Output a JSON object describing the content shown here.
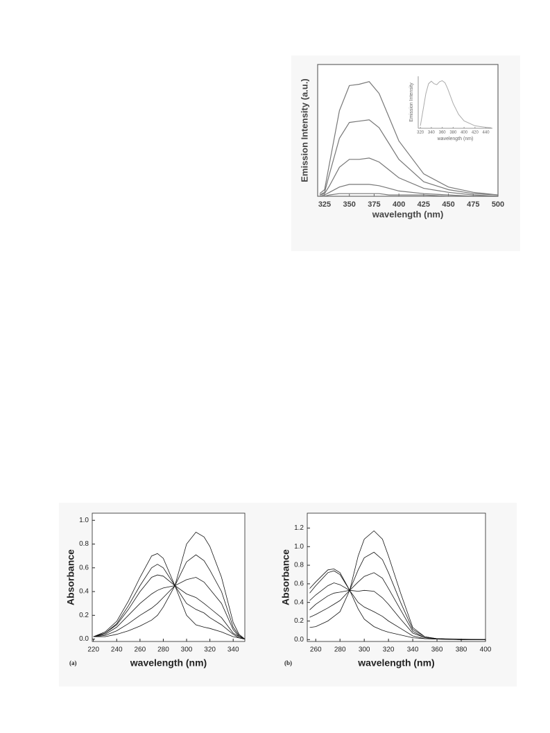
{
  "chart_data": [
    {
      "type": "line",
      "xlabel": "wavelength (nm)",
      "ylabel": "Emission Intensity (a.u.)",
      "x": [
        320,
        325,
        330,
        340,
        350,
        360,
        370,
        380,
        390,
        400,
        425,
        450,
        475,
        500
      ],
      "series": [
        {
          "color": "#777777",
          "values": [
            2,
            5,
            25,
            65,
            84,
            85,
            87,
            78,
            60,
            42,
            17,
            7,
            3,
            1
          ]
        },
        {
          "color": "#777777",
          "values": [
            1,
            3,
            17,
            44,
            56,
            57,
            58,
            52,
            40,
            28,
            11,
            5,
            2,
            1
          ]
        },
        {
          "color": "#777777",
          "values": [
            1,
            2,
            8,
            22,
            28,
            28,
            29,
            26,
            20,
            14,
            6,
            3,
            1,
            0
          ]
        },
        {
          "color": "#777777",
          "values": [
            0,
            1,
            3,
            7,
            9,
            9,
            9,
            8,
            6,
            4,
            2,
            1,
            0,
            0
          ]
        },
        {
          "color": "#777777",
          "values": [
            0,
            0,
            1,
            2,
            2,
            2,
            2,
            2,
            1,
            1,
            1,
            0,
            0,
            0
          ]
        }
      ],
      "xlim": [
        318,
        500
      ],
      "xticks": [
        325,
        350,
        375,
        400,
        425,
        450,
        475,
        500
      ],
      "ylim": [
        0,
        100
      ]
    },
    {
      "type": "line",
      "xlabel": "wavelength (nm)",
      "ylabel": "Emission Intensity",
      "x": [
        320,
        330,
        335,
        340,
        345,
        350,
        355,
        360,
        365,
        370,
        380,
        390,
        400,
        420,
        440,
        450
      ],
      "series": [
        {
          "color": "#aaaaaa",
          "values": [
            5,
            70,
            90,
            95,
            90,
            88,
            94,
            96,
            92,
            80,
            50,
            28,
            15,
            5,
            2,
            1
          ]
        }
      ],
      "xlim": [
        316,
        452
      ],
      "xticks": [
        320,
        340,
        360,
        380,
        400,
        420,
        440
      ],
      "ylim": [
        0,
        105
      ]
    },
    {
      "type": "line",
      "xlabel": "wavelength (nm)",
      "ylabel": "Absorbance",
      "panel_label": "(a)",
      "x": [
        220,
        230,
        240,
        250,
        260,
        270,
        275,
        280,
        290,
        300,
        308,
        315,
        320,
        330,
        340,
        345,
        350
      ],
      "series": [
        {
          "color": "#111111",
          "values": [
            0.02,
            0.06,
            0.15,
            0.32,
            0.52,
            0.7,
            0.72,
            0.68,
            0.45,
            0.2,
            0.12,
            0.1,
            0.09,
            0.06,
            0.02,
            0.01,
            0
          ]
        },
        {
          "color": "#111111",
          "values": [
            0.02,
            0.05,
            0.13,
            0.28,
            0.45,
            0.6,
            0.63,
            0.6,
            0.45,
            0.3,
            0.25,
            0.22,
            0.18,
            0.12,
            0.04,
            0.01,
            0
          ]
        },
        {
          "color": "#111111",
          "values": [
            0.02,
            0.05,
            0.12,
            0.25,
            0.4,
            0.52,
            0.54,
            0.53,
            0.45,
            0.38,
            0.35,
            0.3,
            0.26,
            0.18,
            0.05,
            0.02,
            0
          ]
        },
        {
          "color": "#111111",
          "values": [
            0.02,
            0.04,
            0.1,
            0.2,
            0.3,
            0.38,
            0.41,
            0.43,
            0.45,
            0.5,
            0.52,
            0.48,
            0.42,
            0.3,
            0.08,
            0.02,
            0
          ]
        },
        {
          "color": "#111111",
          "values": [
            0.02,
            0.03,
            0.07,
            0.13,
            0.2,
            0.26,
            0.3,
            0.35,
            0.45,
            0.65,
            0.71,
            0.66,
            0.58,
            0.4,
            0.1,
            0.03,
            0
          ]
        },
        {
          "color": "#111111",
          "values": [
            0.02,
            0.02,
            0.04,
            0.07,
            0.11,
            0.16,
            0.2,
            0.27,
            0.45,
            0.8,
            0.9,
            0.86,
            0.78,
            0.52,
            0.14,
            0.04,
            0
          ]
        }
      ],
      "xlim": [
        219,
        350
      ],
      "xticks": [
        220,
        240,
        260,
        280,
        300,
        320,
        340
      ],
      "ylim": [
        -0.02,
        1.06
      ],
      "yticks": [
        {
          "value": 0,
          "label": "0.0"
        },
        {
          "value": 0.2,
          "label": "0.2"
        },
        {
          "value": 0.4,
          "label": "0.4"
        },
        {
          "value": 0.6,
          "label": "0.6"
        },
        {
          "value": 0.8,
          "label": "0.8"
        },
        {
          "value": 1,
          "label": "1.0"
        }
      ]
    },
    {
      "type": "line",
      "xlabel": "wavelength (nm)",
      "ylabel": "Absorbance",
      "panel_label": "(b)",
      "x": [
        255,
        260,
        270,
        275,
        280,
        288,
        295,
        300,
        308,
        315,
        320,
        330,
        340,
        350,
        360,
        380,
        400
      ],
      "series": [
        {
          "color": "#111111",
          "values": [
            0.55,
            0.62,
            0.75,
            0.76,
            0.72,
            0.53,
            0.33,
            0.22,
            0.14,
            0.1,
            0.08,
            0.05,
            0.02,
            0.01,
            0.005,
            0,
            0
          ]
        },
        {
          "color": "#111111",
          "values": [
            0.5,
            0.58,
            0.72,
            0.74,
            0.7,
            0.53,
            0.4,
            0.35,
            0.3,
            0.25,
            0.2,
            0.12,
            0.04,
            0.01,
            0.005,
            0,
            0
          ]
        },
        {
          "color": "#111111",
          "values": [
            0.42,
            0.48,
            0.58,
            0.61,
            0.59,
            0.53,
            0.52,
            0.53,
            0.52,
            0.45,
            0.38,
            0.22,
            0.07,
            0.02,
            0.01,
            0,
            0
          ]
        },
        {
          "color": "#111111",
          "values": [
            0.32,
            0.38,
            0.47,
            0.5,
            0.51,
            0.53,
            0.62,
            0.68,
            0.72,
            0.66,
            0.55,
            0.32,
            0.09,
            0.02,
            0.01,
            0,
            0
          ]
        },
        {
          "color": "#111111",
          "values": [
            0.24,
            0.27,
            0.34,
            0.38,
            0.42,
            0.53,
            0.75,
            0.88,
            0.94,
            0.86,
            0.72,
            0.4,
            0.11,
            0.03,
            0.01,
            0,
            0
          ]
        },
        {
          "color": "#111111",
          "values": [
            0.13,
            0.14,
            0.2,
            0.25,
            0.3,
            0.53,
            0.9,
            1.08,
            1.17,
            1.08,
            0.9,
            0.5,
            0.13,
            0.03,
            0.01,
            0.005,
            0
          ]
        }
      ],
      "xlim": [
        253,
        400
      ],
      "xticks": [
        260,
        280,
        300,
        320,
        340,
        360,
        380,
        400
      ],
      "ylim": [
        -0.02,
        1.36
      ],
      "yticks": [
        {
          "value": 0,
          "label": "0.0"
        },
        {
          "value": 0.2,
          "label": "0.2"
        },
        {
          "value": 0.4,
          "label": "0.4"
        },
        {
          "value": 0.6,
          "label": "0.6"
        },
        {
          "value": 0.8,
          "label": "0.8"
        },
        {
          "value": 1,
          "label": "1.0"
        },
        {
          "value": 1.2,
          "label": "1.2"
        }
      ]
    }
  ]
}
